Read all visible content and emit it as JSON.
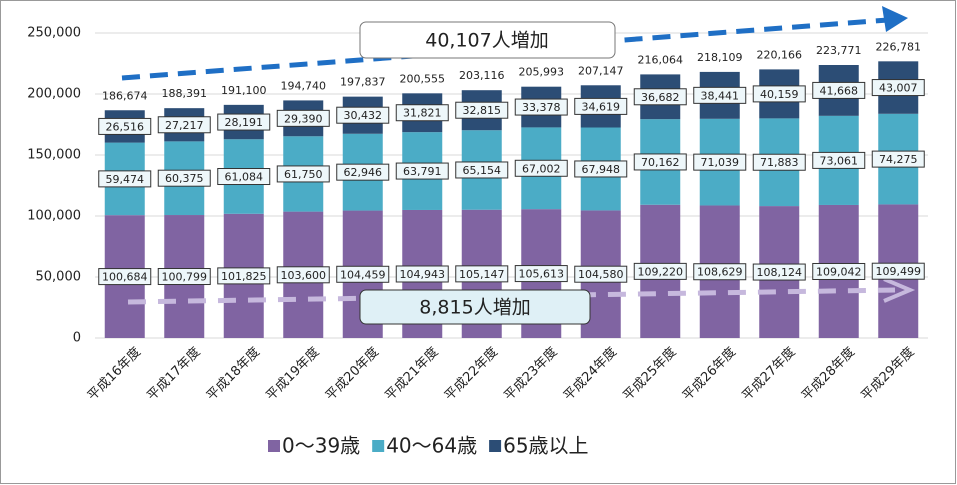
{
  "chart_data": {
    "type": "stacked_bar",
    "categories": [
      "平成16年度",
      "平成17年度",
      "平成18年度",
      "平成19年度",
      "平成20年度",
      "平成21年度",
      "平成22年度",
      "平成23年度",
      "平成24年度",
      "平成25年度",
      "平成26年度",
      "平成27年度",
      "平成28年度",
      "平成29年度"
    ],
    "series": [
      {
        "name": "0～39歳",
        "color": "#8064a2",
        "values": [
          100684,
          100799,
          101825,
          103600,
          104459,
          104943,
          105147,
          105613,
          104580,
          109220,
          108629,
          108124,
          109042,
          109499
        ],
        "value_labels": [
          "100,684",
          "100,799",
          "101,825",
          "103,600",
          "104,459",
          "104,943",
          "105,147",
          "105,613",
          "104,580",
          "109,220",
          "108,629",
          "108,124",
          "109,042",
          "109,499"
        ]
      },
      {
        "name": "40～64歳",
        "color": "#4bacc6",
        "values": [
          59474,
          60375,
          61084,
          61750,
          62946,
          63791,
          65154,
          67002,
          67948,
          70162,
          71039,
          71883,
          73061,
          74275
        ],
        "value_labels": [
          "59,474",
          "60,375",
          "61,084",
          "61,750",
          "62,946",
          "63,791",
          "65,154",
          "67,002",
          "67,948",
          "70,162",
          "71,039",
          "71,883",
          "73,061",
          "74,275"
        ]
      },
      {
        "name": "65歳以上",
        "color": "#2c4d75",
        "values": [
          26516,
          27217,
          28191,
          29390,
          30432,
          31821,
          32815,
          33378,
          34619,
          36682,
          38441,
          40159,
          41668,
          43007
        ],
        "value_labels": [
          "26,516",
          "27,217",
          "28,191",
          "29,390",
          "30,432",
          "31,821",
          "32,815",
          "33,378",
          "34,619",
          "36,682",
          "38,441",
          "40,159",
          "41,668",
          "43,007"
        ]
      }
    ],
    "totals": [
      186674,
      188391,
      191100,
      194740,
      197837,
      200555,
      203116,
      205993,
      207147,
      216064,
      218109,
      220166,
      223771,
      226781
    ],
    "total_labels": [
      "186,674",
      "188,391",
      "191,100",
      "194,740",
      "197,837",
      "200,555",
      "203,116",
      "205,993",
      "207,147",
      "216,064",
      "218,109",
      "220,166",
      "223,771",
      "226,781"
    ],
    "annotations": [
      "40,107人増加",
      "8,815人増加"
    ],
    "ylim": [
      0,
      250000
    ],
    "yticks": [
      0,
      {
        "value": 50000,
        "label": "50,000"
      },
      {
        "value": 100000,
        "label": "100,000"
      },
      {
        "value": 150000,
        "label": "150,000"
      },
      {
        "value": 200000,
        "label": "200,000"
      },
      {
        "value": 250000,
        "label": "250,000"
      }
    ],
    "grid": true
  }
}
